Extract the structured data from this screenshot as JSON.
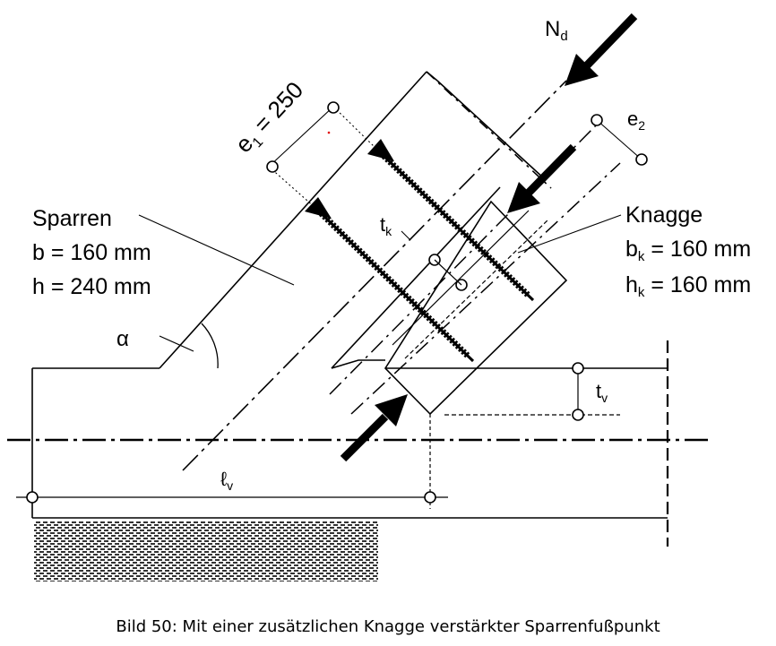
{
  "labels": {
    "force": "N",
    "force_sub": "d",
    "e1": "e",
    "e1_sub": "1",
    "e1_value": " = 250",
    "e2": "e",
    "e2_sub": "2",
    "sparren": "Sparren",
    "sparren_b": "b = 160 mm",
    "sparren_h": "h = 240 mm",
    "knagge": "Knagge",
    "knagge_b": "b",
    "knagge_b_sub": "k",
    "knagge_b_value": " = 160 mm",
    "knagge_h": "h",
    "knagge_h_sub": "k",
    "knagge_h_value": " = 160 mm",
    "tk": "t",
    "tk_sub": "k",
    "alpha": "α",
    "tv": "t",
    "tv_sub": "v",
    "lv": "ℓ",
    "lv_sub": "v"
  },
  "caption": "Bild 50: Mit einer zusätzlichen Knagge verstärkter Sparrenfußpunkt",
  "colors": {
    "ink": "#000000",
    "accent_dot": "#e00000"
  }
}
